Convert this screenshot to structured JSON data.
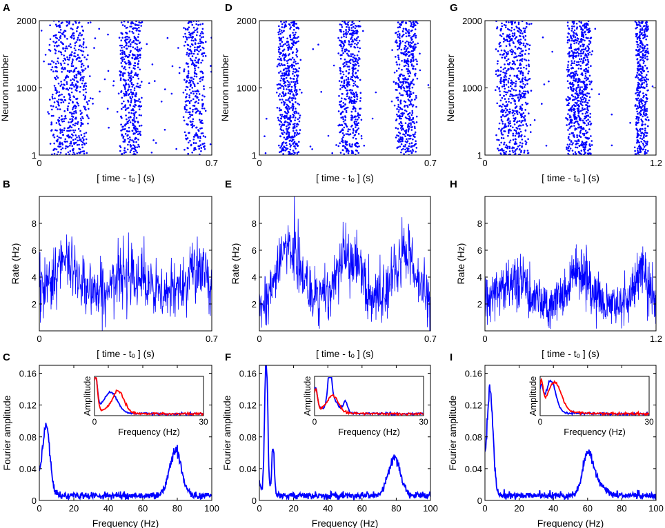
{
  "figure": {
    "description_free": true
  },
  "chart_data": [
    {
      "id": "A",
      "type": "scatter",
      "panel_letter": "A",
      "xlabel": "[ time - tₒ ] (s)",
      "ylabel": "Neuron number",
      "xlim": [
        0,
        0.7
      ],
      "ylim": [
        1,
        2000
      ],
      "xticks": [
        0,
        0.7
      ],
      "xtick_labels": [
        "0",
        "0.7"
      ],
      "yticks": [
        1,
        1000,
        2000
      ],
      "ytick_labels": [
        "1",
        "1000",
        "2000"
      ],
      "series": [
        {
          "name": "spikes",
          "color": "#0000ff",
          "count": 1400,
          "bursts": [
            {
              "center": 0.12,
              "width": 0.09,
              "weight": 0.42
            },
            {
              "center": 0.37,
              "width": 0.05,
              "weight": 0.32
            },
            {
              "center": 0.63,
              "width": 0.05,
              "weight": 0.26
            }
          ],
          "background": 0.08
        }
      ]
    },
    {
      "id": "B",
      "type": "line",
      "panel_letter": "B",
      "xlabel": "[ time - tₒ ] (s)",
      "ylabel": "Rate (Hz)",
      "xlim": [
        0,
        0.7
      ],
      "ylim": [
        0,
        10
      ],
      "xticks": [
        0,
        0.7
      ],
      "xtick_labels": [
        "0",
        "0.7"
      ],
      "yticks": [
        2,
        4,
        6,
        8
      ],
      "ytick_labels": [
        "2",
        "4",
        "6",
        "8"
      ],
      "series": [
        {
          "name": "population rate",
          "color": "#0000ff",
          "points": 500,
          "baseline": 2.6,
          "peaks": [
            {
              "x": 0.11,
              "height": 2.3,
              "width": 0.06
            },
            {
              "x": 0.37,
              "height": 2.0,
              "width": 0.05
            },
            {
              "x": 0.63,
              "height": 2.2,
              "width": 0.04
            }
          ],
          "noise": 1.4
        }
      ]
    },
    {
      "id": "C",
      "type": "line",
      "panel_letter": "C",
      "xlabel": "Frequency (Hz)",
      "ylabel": "Fourier amplitude",
      "xlim": [
        0,
        100
      ],
      "ylim": [
        0,
        0.17
      ],
      "xticks": [
        0,
        20,
        40,
        60,
        80,
        100
      ],
      "xtick_labels": [
        "0",
        "20",
        "40",
        "60",
        "80",
        "100"
      ],
      "yticks": [
        0,
        0.04,
        0.08,
        0.12,
        0.16
      ],
      "ytick_labels": [
        "0",
        "0.04",
        "0.08",
        "0.12",
        "0.16"
      ],
      "series": [
        {
          "name": "spectrum",
          "color": "#0000ff",
          "base": 0.006,
          "peaks": [
            {
              "f": 4,
              "amp": 0.088,
              "width": 2.2
            },
            {
              "f": 79,
              "amp": 0.056,
              "width": 3.5
            }
          ],
          "noise": 0.004
        }
      ],
      "inset": {
        "xlabel": "Frequency (Hz)",
        "ylabel": "Amplitude",
        "xlim": [
          0,
          30
        ],
        "xtick_labels": [
          "0",
          "30"
        ],
        "series": [
          {
            "name": "blue",
            "color": "#0000ff",
            "peaks": [
              {
                "f": 0.3,
                "amp": 0.9,
                "width": 0.5
              },
              {
                "f": 4.5,
                "amp": 0.55,
                "width": 1.8
              }
            ],
            "decay": 0.25
          },
          {
            "name": "red",
            "color": "#ff0000",
            "peaks": [
              {
                "f": 0.3,
                "amp": 0.95,
                "width": 0.5
              },
              {
                "f": 6.5,
                "amp": 0.6,
                "width": 1.6
              }
            ],
            "decay": 0.22
          }
        ]
      }
    },
    {
      "id": "D",
      "type": "scatter",
      "panel_letter": "D",
      "xlabel": "[ time - tₒ ] (s)",
      "ylabel": "Neuron number",
      "xlim": [
        0,
        0.7
      ],
      "ylim": [
        1,
        2000
      ],
      "xticks": [
        0,
        0.7
      ],
      "xtick_labels": [
        "0",
        "0.7"
      ],
      "yticks": [
        1,
        1000,
        2000
      ],
      "ytick_labels": [
        "1",
        "1000",
        "2000"
      ],
      "series": [
        {
          "name": "spikes",
          "color": "#0000ff",
          "count": 1500,
          "bursts": [
            {
              "center": 0.12,
              "width": 0.05,
              "weight": 0.36
            },
            {
              "center": 0.37,
              "width": 0.05,
              "weight": 0.32
            },
            {
              "center": 0.6,
              "width": 0.05,
              "weight": 0.32
            }
          ],
          "background": 0.03
        }
      ]
    },
    {
      "id": "E",
      "type": "line",
      "panel_letter": "E",
      "xlabel": "[ time - tₒ ] (s)",
      "ylabel": "Rate (Hz)",
      "xlim": [
        0,
        0.7
      ],
      "ylim": [
        0,
        10
      ],
      "xticks": [
        0,
        0.7
      ],
      "xtick_labels": [
        "0",
        "0.7"
      ],
      "yticks": [
        2,
        4,
        6,
        8
      ],
      "ytick_labels": [
        "2",
        "4",
        "6",
        "8"
      ],
      "series": [
        {
          "name": "population rate",
          "color": "#0000ff",
          "points": 500,
          "baseline": 2.2,
          "peaks": [
            {
              "x": 0.12,
              "height": 4.0,
              "width": 0.045
            },
            {
              "x": 0.37,
              "height": 3.2,
              "width": 0.05
            },
            {
              "x": 0.6,
              "height": 3.4,
              "width": 0.045
            }
          ],
          "noise": 1.4
        }
      ]
    },
    {
      "id": "F",
      "type": "line",
      "panel_letter": "F",
      "xlabel": "Frequency (Hz)",
      "ylabel": "Fourier amplitude",
      "xlim": [
        0,
        100
      ],
      "ylim": [
        0,
        0.17
      ],
      "xticks": [
        0,
        20,
        40,
        60,
        80,
        100
      ],
      "xtick_labels": [
        "0",
        "20",
        "40",
        "60",
        "80",
        "100"
      ],
      "yticks": [
        0,
        0.04,
        0.08,
        0.12,
        0.16
      ],
      "ytick_labels": [
        "0",
        "0.04",
        "0.08",
        "0.12",
        "0.16"
      ],
      "series": [
        {
          "name": "spectrum",
          "color": "#0000ff",
          "base": 0.006,
          "peaks": [
            {
              "f": 4,
              "amp": 0.175,
              "width": 0.9
            },
            {
              "f": 8,
              "amp": 0.06,
              "width": 0.8
            },
            {
              "f": 79,
              "amp": 0.048,
              "width": 3.5
            }
          ],
          "noise": 0.004
        }
      ],
      "inset": {
        "xlabel": "Frequency (Hz)",
        "ylabel": "Amplitude",
        "xlim": [
          0,
          30
        ],
        "xtick_labels": [
          "0",
          "30"
        ],
        "series": [
          {
            "name": "blue",
            "color": "#0000ff",
            "peaks": [
              {
                "f": 0.3,
                "amp": 0.6,
                "width": 0.5
              },
              {
                "f": 4.2,
                "amp": 1.0,
                "width": 0.5
              },
              {
                "f": 5,
                "amp": 0.35,
                "width": 1.5
              },
              {
                "f": 8.5,
                "amp": 0.3,
                "width": 0.6
              }
            ],
            "decay": 0.2
          },
          {
            "name": "red",
            "color": "#ff0000",
            "peaks": [
              {
                "f": 0.3,
                "amp": 0.55,
                "width": 0.5
              },
              {
                "f": 5,
                "amp": 0.45,
                "width": 1.5
              }
            ],
            "decay": 0.2
          }
        ]
      }
    },
    {
      "id": "G",
      "type": "scatter",
      "panel_letter": "G",
      "xlabel": "[ time - tₒ ] (s)",
      "ylabel": "Neuron number",
      "xlim": [
        0,
        1.2
      ],
      "ylim": [
        1,
        2000
      ],
      "xticks": [
        0,
        1.2
      ],
      "xtick_labels": [
        "0",
        "1.2"
      ],
      "yticks": [
        1,
        1000,
        2000
      ],
      "ytick_labels": [
        "1",
        "1000",
        "2000"
      ],
      "series": [
        {
          "name": "spikes",
          "color": "#0000ff",
          "count": 1700,
          "bursts": [
            {
              "center": 0.2,
              "width": 0.13,
              "weight": 0.36
            },
            {
              "center": 0.66,
              "width": 0.1,
              "weight": 0.4
            },
            {
              "center": 1.1,
              "width": 0.05,
              "weight": 0.24
            }
          ],
          "background": 0.02
        }
      ]
    },
    {
      "id": "H",
      "type": "line",
      "panel_letter": "H",
      "xlabel": "[ time - tₒ ] (s)",
      "ylabel": "Rate (Hz)",
      "xlim": [
        0,
        1.2
      ],
      "ylim": [
        0,
        10
      ],
      "xticks": [
        0,
        1.2
      ],
      "xtick_labels": [
        "0",
        "1.2"
      ],
      "yticks": [
        2,
        4,
        6,
        8
      ],
      "ytick_labels": [
        "2",
        "4",
        "6",
        "8"
      ],
      "series": [
        {
          "name": "population rate",
          "color": "#0000ff",
          "points": 700,
          "baseline": 1.9,
          "peaks": [
            {
              "x": 0.2,
              "height": 1.7,
              "width": 0.1
            },
            {
              "x": 0.66,
              "height": 2.6,
              "width": 0.08
            },
            {
              "x": 1.1,
              "height": 2.5,
              "width": 0.05
            }
          ],
          "noise": 1.2
        }
      ]
    },
    {
      "id": "I",
      "type": "line",
      "panel_letter": "I",
      "xlabel": "Frequency (Hz)",
      "ylabel": "Fourier amplitude",
      "xlim": [
        0,
        100
      ],
      "ylim": [
        0,
        0.17
      ],
      "xticks": [
        0,
        20,
        40,
        60,
        80,
        100
      ],
      "xtick_labels": [
        "0",
        "20",
        "40",
        "60",
        "80",
        "100"
      ],
      "yticks": [
        0,
        0.04,
        0.08,
        0.12,
        0.16
      ],
      "ytick_labels": [
        "0",
        "0.04",
        "0.08",
        "0.12",
        "0.16"
      ],
      "series": [
        {
          "name": "spectrum",
          "color": "#0000ff",
          "base": 0.006,
          "peaks": [
            {
              "f": 3,
              "amp": 0.13,
              "width": 1.8
            },
            {
              "f": 60,
              "amp": 0.05,
              "width": 3
            },
            {
              "f": 66,
              "amp": 0.015,
              "width": 4
            }
          ],
          "noise": 0.004
        }
      ],
      "inset": {
        "xlabel": "Frequency (Hz)",
        "ylabel": "Amplitude",
        "xlim": [
          0,
          30
        ],
        "xtick_labels": [
          "0",
          "30"
        ],
        "series": [
          {
            "name": "blue",
            "color": "#0000ff",
            "peaks": [
              {
                "f": 0.3,
                "amp": 0.6,
                "width": 0.5
              },
              {
                "f": 3,
                "amp": 0.85,
                "width": 1.3
              }
            ],
            "decay": 0.25
          },
          {
            "name": "red",
            "color": "#ff0000",
            "peaks": [
              {
                "f": 0.3,
                "amp": 0.7,
                "width": 0.5
              },
              {
                "f": 4,
                "amp": 0.8,
                "width": 1.8
              }
            ],
            "decay": 0.15
          }
        ]
      }
    }
  ]
}
